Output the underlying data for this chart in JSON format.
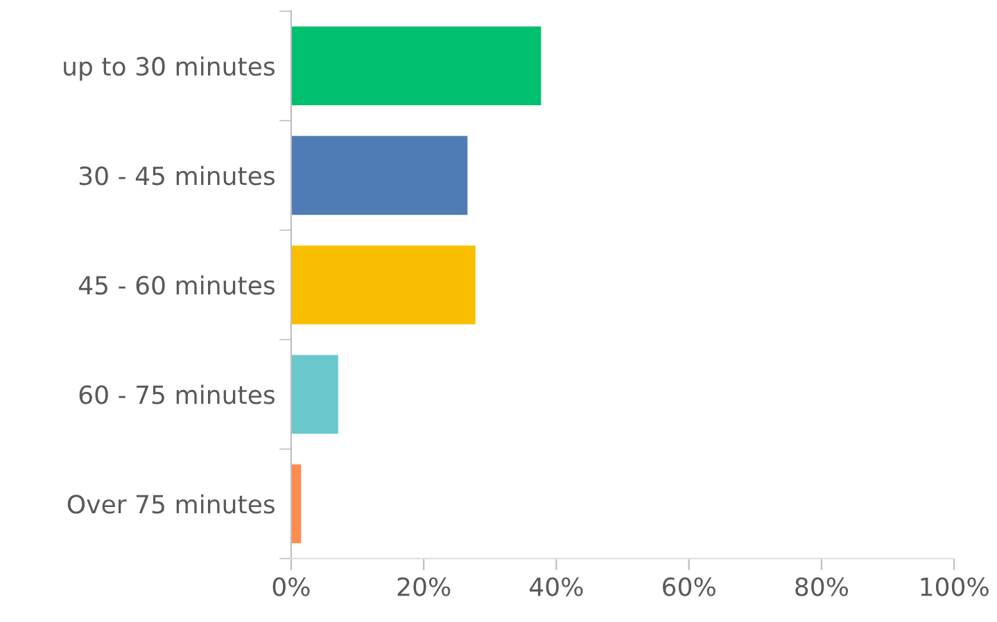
{
  "chart_data": {
    "type": "bar",
    "orientation": "horizontal",
    "categories": [
      "up to 30 minutes",
      "30 - 45 minutes",
      "45 - 60 minutes",
      "60 - 75 minutes",
      "Over 75 minutes"
    ],
    "values": [
      37.7,
      26.6,
      27.8,
      7.1,
      1.5
    ],
    "colors": [
      "#00bf6f",
      "#507cb6",
      "#f9be00",
      "#6bc8cd",
      "#ff8b4f"
    ],
    "xlim": [
      0,
      100
    ],
    "xticks": [
      {
        "value": 0,
        "label": "0%"
      },
      {
        "value": 20,
        "label": "20%"
      },
      {
        "value": 40,
        "label": "40%"
      },
      {
        "value": 60,
        "label": "60%"
      },
      {
        "value": 80,
        "label": "80%"
      },
      {
        "value": 100,
        "label": "100%"
      }
    ],
    "grid": false,
    "legend": false
  }
}
